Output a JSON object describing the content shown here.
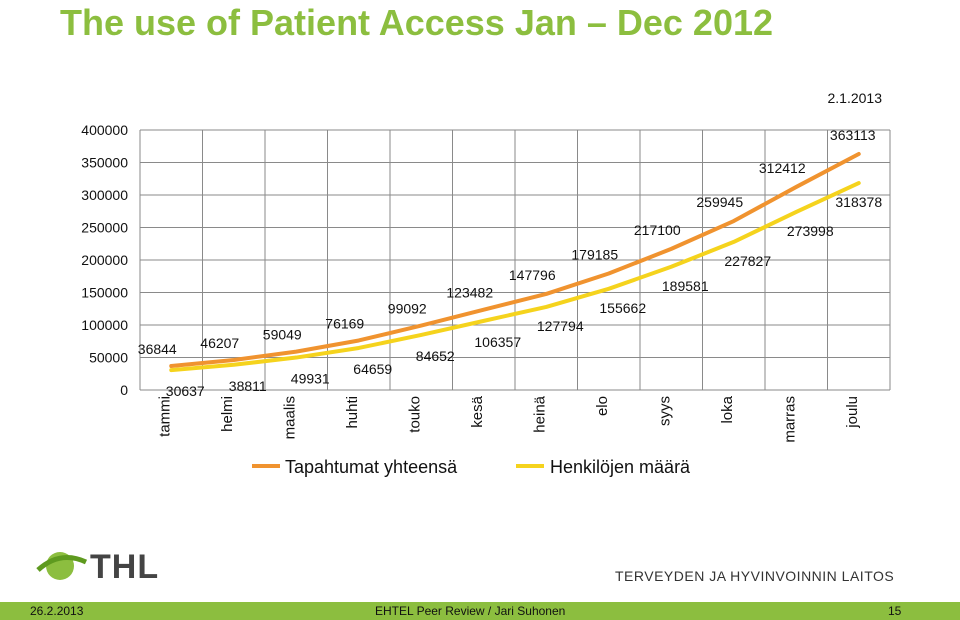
{
  "slide": {
    "title": "The use of Patient Access Jan – Dec 2012",
    "date_stamp": "2.1.2013",
    "brand_text": "THL",
    "institute": "TERVEYDEN JA HYVINVOINNIN LAITOS",
    "footer": {
      "date": "26.2.2013",
      "center": "EHTEL Peer Review / Jari Suhonen",
      "page": "15"
    }
  },
  "chart_data": {
    "type": "line",
    "title": "",
    "categories": [
      "tammi",
      "helmi",
      "maalis",
      "huhti",
      "touko",
      "kesä",
      "heinä",
      "elo",
      "syys",
      "loka",
      "marras",
      "joulu"
    ],
    "ylim": [
      0,
      400000
    ],
    "yticks": [
      "0",
      "50000",
      "100000",
      "150000",
      "200000",
      "250000",
      "300000",
      "350000",
      "400000"
    ],
    "grid": true,
    "legend": "bottom",
    "series": [
      {
        "name": "Tapahtumat yhteensä",
        "color": "#f0932f",
        "values": [
          36844,
          46207,
          59049,
          76169,
          99092,
          123482,
          147796,
          179185,
          217100,
          259945,
          312412,
          363113
        ]
      },
      {
        "name": "Henkilöjen määrä",
        "color": "#f5d31d",
        "values": [
          30637,
          38811,
          49931,
          64659,
          84652,
          106357,
          127794,
          155662,
          189581,
          227827,
          273998,
          318378
        ]
      }
    ]
  }
}
